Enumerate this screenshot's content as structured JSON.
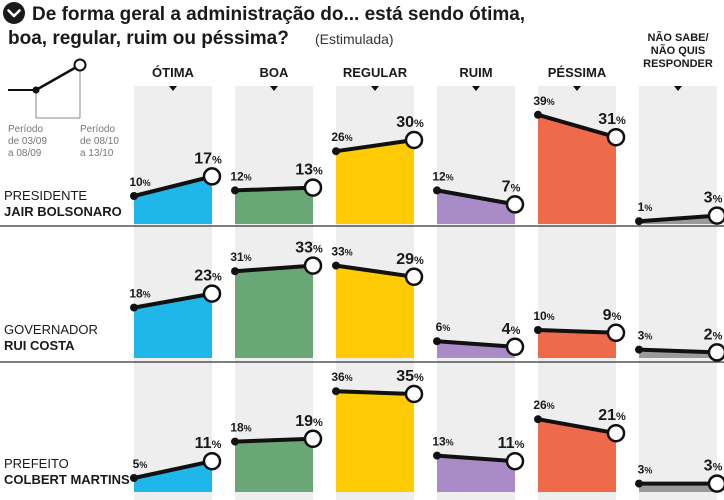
{
  "title": {
    "icon": "chevron-down-icon",
    "line1": "De forma geral a administração do... está sendo ótima,",
    "line2": "boa, regular, ruim ou péssima?",
    "note": "(Estimulada)"
  },
  "legend": {
    "start": "Período de 03/09 a 08/09",
    "start_lines": [
      "Período",
      "de 03/09",
      "a 08/09"
    ],
    "end": "Período de 08/10 a 13/10",
    "end_lines": [
      "Período",
      "de 08/10",
      "a 13/10"
    ]
  },
  "colors": {
    "otima": "#1fb6ea",
    "boa": "#6aa777",
    "regular": "#ffcb05",
    "ruim": "#a98cc7",
    "pessima": "#ef6a4b",
    "nao_sabe": "#9a9a9a",
    "column_bg": "#eeeeee",
    "line": "#111111",
    "divider": "#333333"
  },
  "chart_data": {
    "type": "line",
    "title": "De forma geral a administração do... está sendo ótima, boa, regular, ruim ou péssima? (Estimulada)",
    "x": [
      "Período de 03/09 a 08/09",
      "Período de 08/10 a 13/10"
    ],
    "unit": "%",
    "categories": [
      {
        "key": "otima",
        "label": "ÓTIMA",
        "lines": [
          "ÓTIMA"
        ]
      },
      {
        "key": "boa",
        "label": "BOA",
        "lines": [
          "BOA"
        ]
      },
      {
        "key": "regular",
        "label": "REGULAR",
        "lines": [
          "REGULAR"
        ]
      },
      {
        "key": "ruim",
        "label": "RUIM",
        "lines": [
          "RUIM"
        ]
      },
      {
        "key": "pessima",
        "label": "PÉSSIMA",
        "lines": [
          "PÉSSIMA"
        ]
      },
      {
        "key": "nao_sabe",
        "label": "NÃO SABE/ NÃO QUIS RESPONDER",
        "lines": [
          "NÃO SABE/",
          "NÃO QUIS",
          "RESPONDER"
        ]
      }
    ],
    "groups": [
      {
        "role": "PRESIDENTE",
        "name": "JAIR BOLSONARO",
        "values": {
          "otima": [
            10,
            17
          ],
          "boa": [
            12,
            13
          ],
          "regular": [
            26,
            30
          ],
          "ruim": [
            12,
            7
          ],
          "pessima": [
            39,
            31
          ],
          "nao_sabe": [
            1,
            3
          ]
        }
      },
      {
        "role": "GOVERNADOR",
        "name": "RUI COSTA",
        "values": {
          "otima": [
            18,
            23
          ],
          "boa": [
            31,
            33
          ],
          "regular": [
            33,
            29
          ],
          "ruim": [
            6,
            4
          ],
          "pessima": [
            10,
            9
          ],
          "nao_sabe": [
            3,
            2
          ]
        }
      },
      {
        "role": "PREFEITO",
        "name": "COLBERT MARTINS",
        "values": {
          "otima": [
            5,
            11
          ],
          "boa": [
            18,
            19
          ],
          "regular": [
            36,
            35
          ],
          "ruim": [
            13,
            11
          ],
          "pessima": [
            26,
            21
          ],
          "nao_sabe": [
            3,
            3
          ]
        }
      }
    ]
  }
}
